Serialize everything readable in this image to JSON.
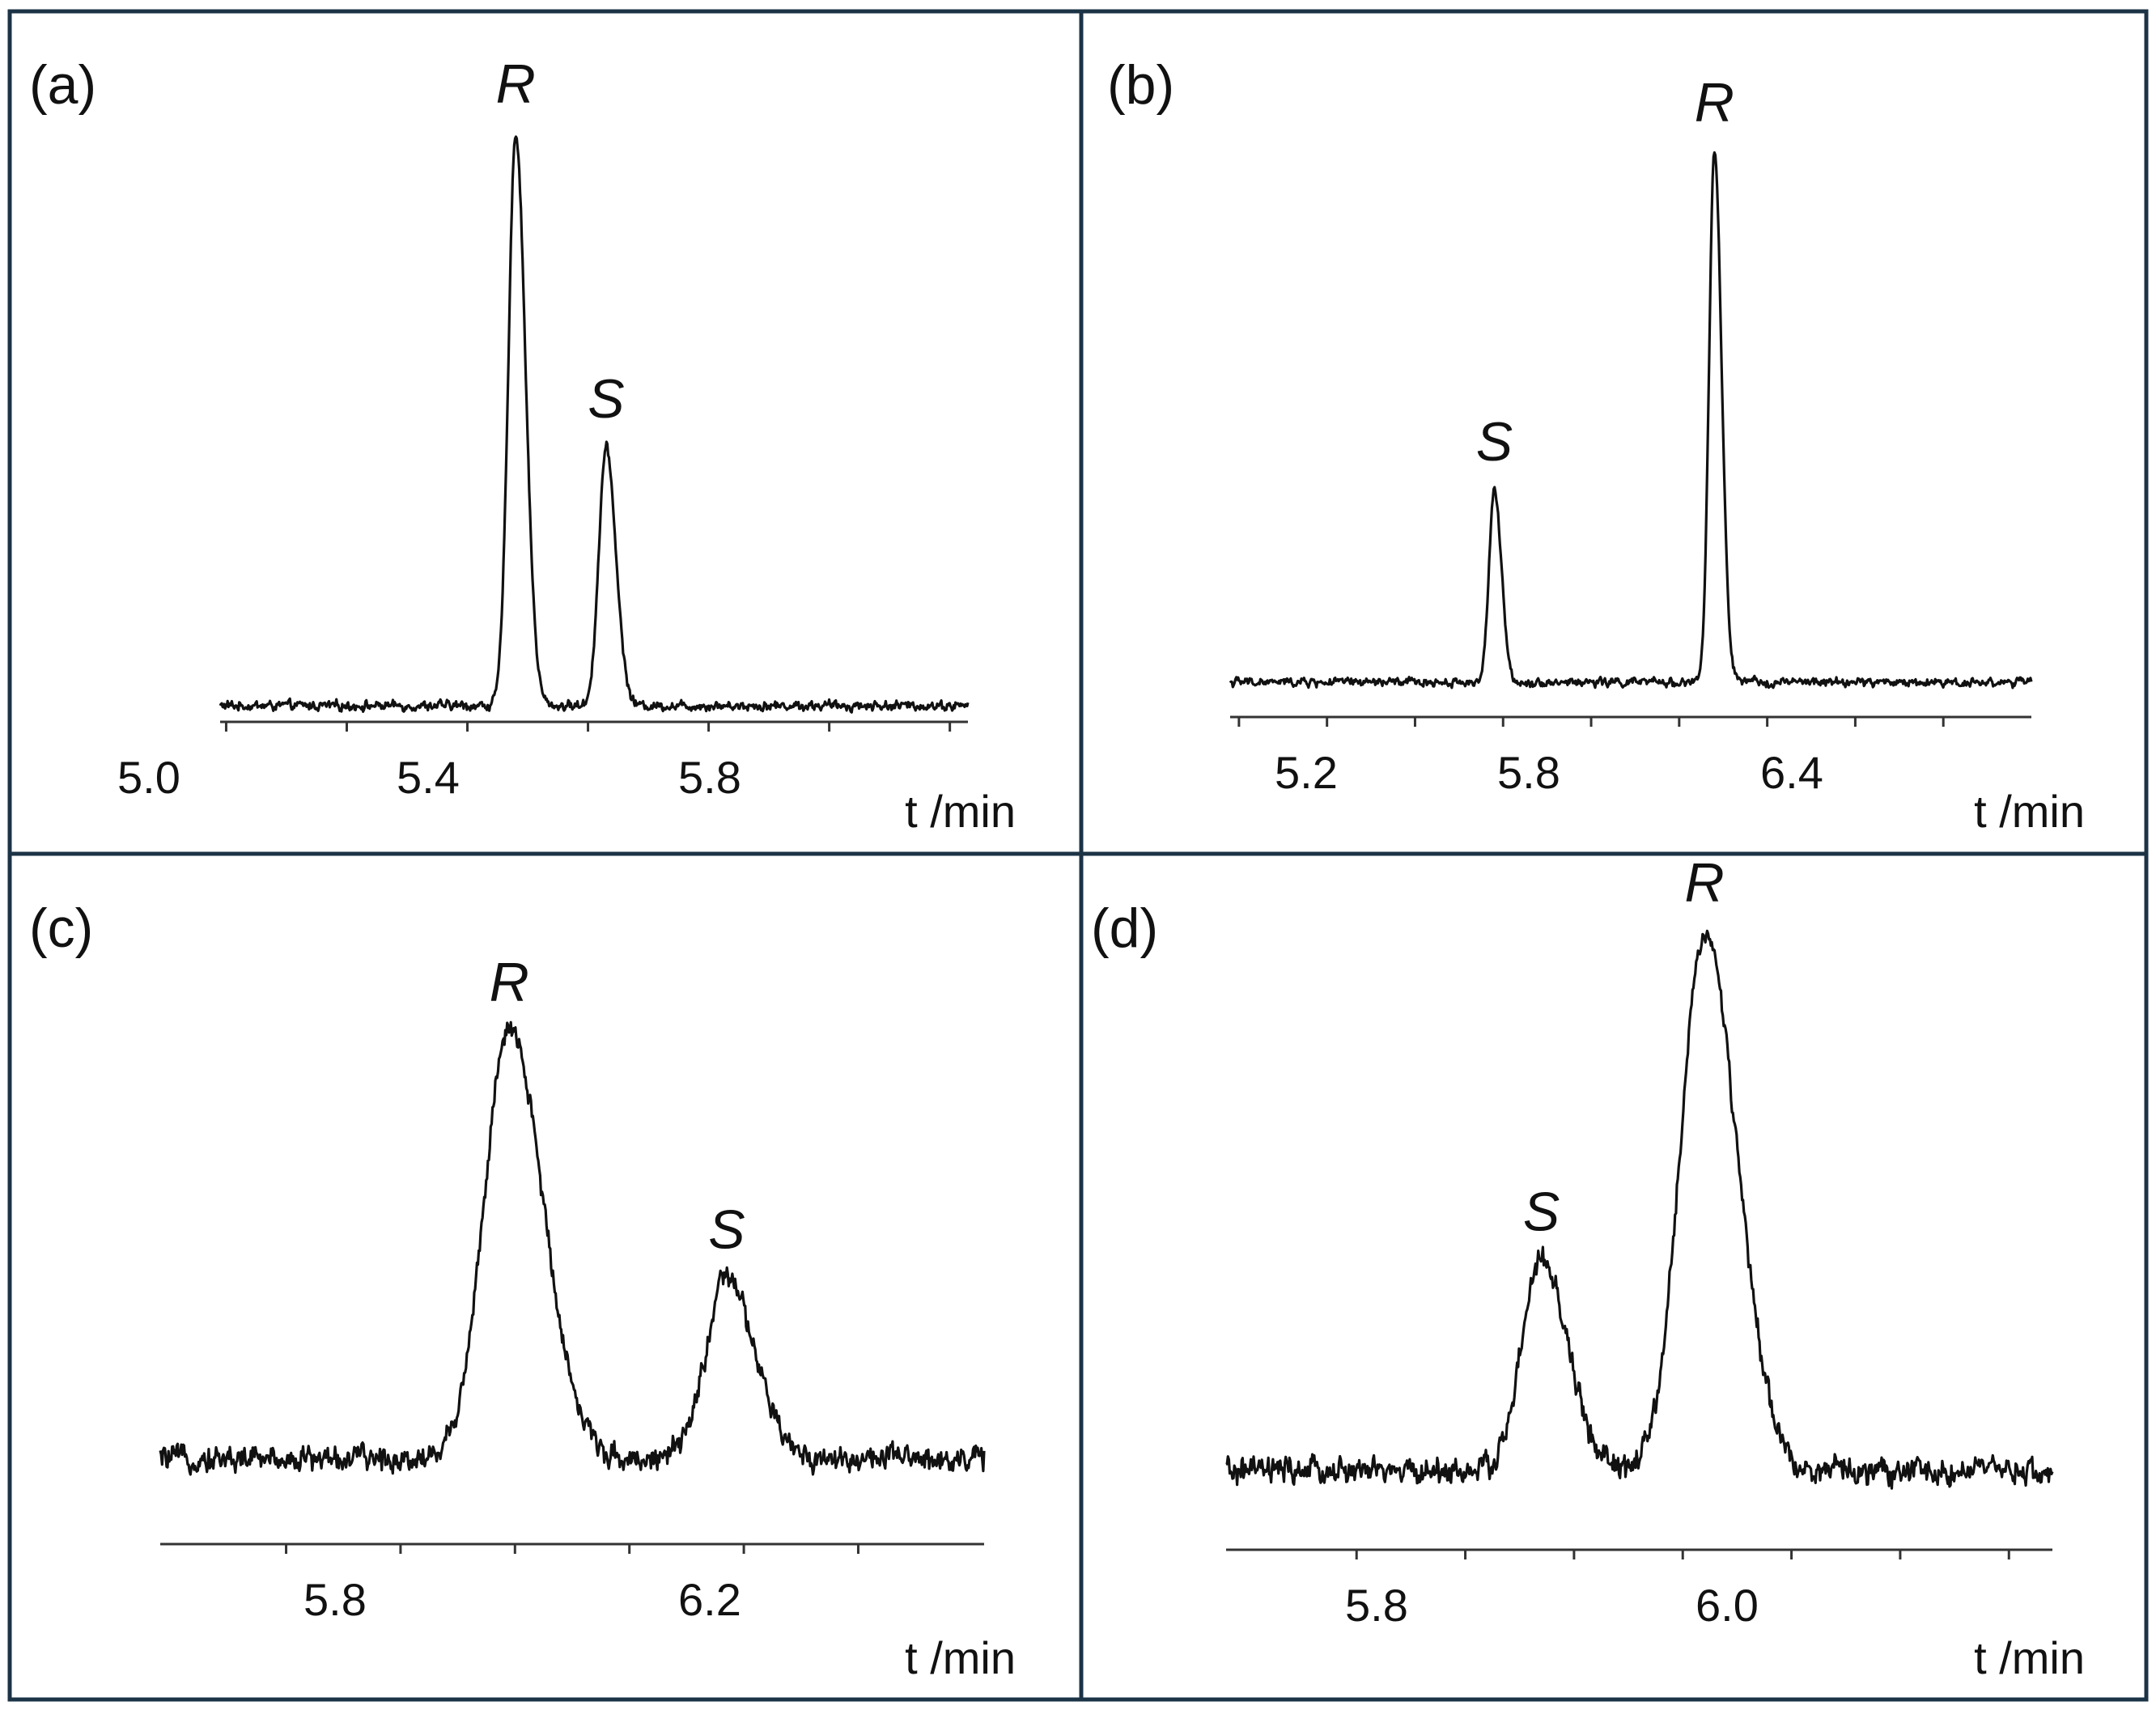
{
  "figure": {
    "frame_color": "#1c3346",
    "trace_color": "#111111",
    "background": "#ffffff"
  },
  "chart_data": [
    {
      "type": "line",
      "panel_label": "(a)",
      "xlabel": "t /min",
      "ylabel": "",
      "xlim": [
        4.99,
        6.23
      ],
      "ylim": [
        0,
        1.0
      ],
      "x_ticks_labeled": [
        5.0,
        5.4,
        5.8
      ],
      "x_tick_labels": [
        "5.0",
        "5.4",
        "5.8"
      ],
      "x_ticks_minor": [
        5.2,
        5.6,
        6.0,
        6.2
      ],
      "series": [
        {
          "name": "trace",
          "baseline": 0.0,
          "noise": 0.012,
          "peaks": [
            {
              "label": "R",
              "t": 5.48,
              "height": 1.0,
              "width": 0.012
            },
            {
              "label": "S",
              "t": 5.63,
              "height": 0.45,
              "width": 0.012
            }
          ]
        }
      ]
    },
    {
      "type": "line",
      "panel_label": "(b)",
      "xlabel": "t /min",
      "ylabel": "",
      "xlim": [
        5.18,
        7.0
      ],
      "ylim": [
        0,
        1.0
      ],
      "x_ticks_labeled": [
        5.2,
        5.8,
        6.4
      ],
      "x_tick_labels": [
        "5.2",
        "5.8",
        "6.4"
      ],
      "x_ticks_minor": [
        5.4,
        5.6,
        6.0,
        6.2,
        6.6,
        6.8
      ],
      "series": [
        {
          "name": "trace",
          "baseline": 0.0,
          "noise": 0.012,
          "peaks": [
            {
              "label": "S",
              "t": 5.78,
              "height": 0.36,
              "width": 0.012
            },
            {
              "label": "R",
              "t": 6.28,
              "height": 1.0,
              "width": 0.012
            }
          ]
        }
      ]
    },
    {
      "type": "line",
      "panel_label": "(c)",
      "xlabel": "t /min",
      "ylabel": "",
      "xlim": [
        5.69,
        6.41
      ],
      "ylim": [
        0,
        1.0
      ],
      "x_ticks_labeled": [
        5.8,
        6.2
      ],
      "x_tick_labels": [
        "5.8",
        "6.2"
      ],
      "x_ticks_minor": [
        5.9,
        6.0,
        6.1,
        6.3
      ],
      "series": [
        {
          "name": "trace",
          "baseline": 0.05,
          "noise": 0.04,
          "peaks": [
            {
              "label": "R",
              "t": 5.995,
              "height": 0.95,
              "width": 0.022
            },
            {
              "label": "S",
              "t": 6.185,
              "height": 0.4,
              "width": 0.018
            }
          ]
        }
      ]
    },
    {
      "type": "line",
      "panel_label": "(d)",
      "xlabel": "t /min",
      "ylabel": "",
      "xlim": [
        5.74,
        6.12
      ],
      "ylim": [
        0,
        1.0
      ],
      "x_ticks_labeled": [
        5.8,
        6.0
      ],
      "x_tick_labels": [
        "5.8",
        "6.0"
      ],
      "x_ticks_minor": [
        5.85,
        5.9,
        5.95,
        6.05,
        6.1
      ],
      "series": [
        {
          "name": "trace",
          "baseline": 0.03,
          "noise": 0.035,
          "peaks": [
            {
              "label": "S",
              "t": 5.885,
              "height": 0.39,
              "width": 0.009
            },
            {
              "label": "R",
              "t": 5.96,
              "height": 1.0,
              "width": 0.011
            }
          ]
        }
      ]
    }
  ]
}
